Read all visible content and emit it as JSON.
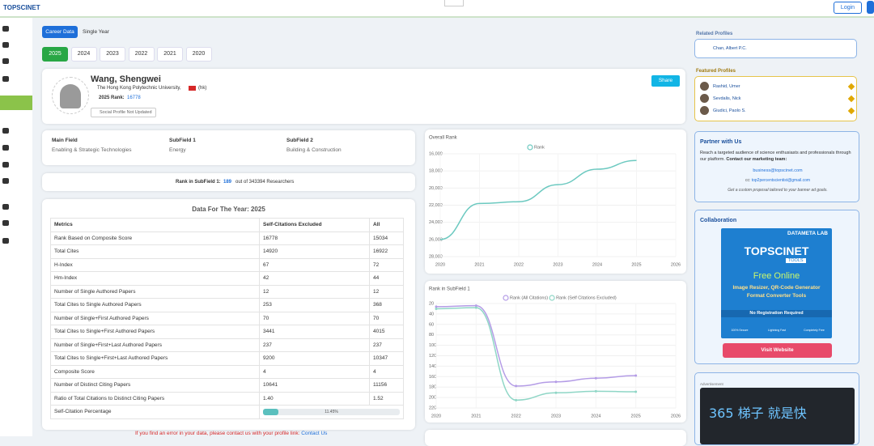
{
  "header": {
    "logo": "TOPSCINET",
    "login": "Login"
  },
  "tabs": [
    "Career Data",
    "Single Year"
  ],
  "years": [
    "2025",
    "2024",
    "2023",
    "2022",
    "2021",
    "2020"
  ],
  "profile": {
    "name": "Wang, Shengwei",
    "institution": "The Hong Kong Polytechnic University,",
    "country": "(hk)",
    "rank_label": "2025 Rank:",
    "rank": "16778",
    "social": "Social Profile Not Updated",
    "share": "Share"
  },
  "fields": [
    {
      "label": "Main Field",
      "value": "Enabling & Strategic Technologies"
    },
    {
      "label": "SubField 1",
      "value": "Energy"
    },
    {
      "label": "SubField 2",
      "value": "Building & Construction"
    }
  ],
  "subfield_rank": {
    "label": "Rank in SubField 1:",
    "rank": "189",
    "text": "out of 343394 Researchers"
  },
  "table": {
    "title": "Data For The Year: 2025",
    "header": [
      "Metrics",
      "Self-Citations Excluded",
      "All"
    ],
    "rows": [
      [
        "Rank Based on Composite Score",
        "16778",
        "15034"
      ],
      [
        "Total Cites",
        "14920",
        "16922"
      ],
      [
        "H-Index",
        "67",
        "72"
      ],
      [
        "Hm-Index",
        "42",
        "44"
      ],
      [
        "Number of Single Authored Papers",
        "12",
        "12"
      ],
      [
        "Total Cites to Single Authored Papers",
        "253",
        "368"
      ],
      [
        "Number of Single+First Authored Papers",
        "70",
        "70"
      ],
      [
        "Total Cites to Single+First Authored Papers",
        "3441",
        "4015"
      ],
      [
        "Number of Single+First+Last Authored Papers",
        "237",
        "237"
      ],
      [
        "Total Cites to Single+First+Last Authored Papers",
        "9200",
        "10347"
      ],
      [
        "Composite Score",
        "4",
        "4"
      ],
      [
        "Number of Distinct Citing Papers",
        "10641",
        "11156"
      ],
      [
        "Ratio of Total Citations to Distinct Citing Papers",
        "1.40",
        "1.52"
      ]
    ],
    "self_citation": {
      "label": "Self-Citation Percentage",
      "value": 11.45,
      "value_label": "11.45%",
      "max": 100
    }
  },
  "footer": {
    "text": "If you find an error in your data, please contact us with your profile link:",
    "link": "Contact Us"
  },
  "sidebar": {
    "related_title": "Related Profiles",
    "related": [
      "Chan, Albert P.C."
    ],
    "featured_title": "Featured Profiles",
    "featured": [
      "Rashid, Umer",
      "Sevdalis, Nick",
      "Giudici, Paolo S."
    ],
    "partner": {
      "title": "Partner with Us",
      "text": "Reach a targeted audience of science enthusiasts and professionals through our platform.",
      "bold": "Contact our marketing team:",
      "email1": "business@topscinet.com",
      "cc": "cc:",
      "email2": "top2percentscientist@gmail.com",
      "note": "Get a custom proposal tailored to your banner ad goals."
    },
    "collab": {
      "title": "Collaboration",
      "brand": "DATAMETA LAB",
      "logo": "TOPSCINET",
      "tools": "TOOLS",
      "headline": "Free Online",
      "line1": "Image Resizer, QR-Code Generator",
      "line2": "Format Converter Tools",
      "noreg": "No Registration Required",
      "features": [
        "100% Secure",
        "Lightning Fast",
        "Completely Free"
      ],
      "button": "Visit Website"
    },
    "ad": {
      "label": "Advertisement",
      "text": "365 梯子 就是快"
    }
  },
  "chart_data": [
    {
      "type": "line",
      "title": "Overall Rank",
      "x": [
        2020,
        2021,
        2022,
        2023,
        2024,
        2025
      ],
      "xlim": [
        2020,
        2026
      ],
      "xticks": [
        2020,
        2021,
        2022,
        2023,
        2024,
        2025,
        2026
      ],
      "ylim": [
        28000,
        16000
      ],
      "yticks": [
        {
          "value": 16000,
          "label": "16,000"
        },
        {
          "value": 18000,
          "label": "18,000"
        },
        {
          "value": 20000,
          "label": "20,000"
        },
        {
          "value": 22000,
          "label": "22,000"
        },
        {
          "value": 24000,
          "label": "24,000"
        },
        {
          "value": 26000,
          "label": "26,000"
        },
        {
          "value": 28000,
          "label": "28,000"
        }
      ],
      "grid": true,
      "legend": "top",
      "series": [
        {
          "name": "Rank",
          "color": "#6cc9c0",
          "values": [
            26000,
            21800,
            21600,
            19600,
            17800,
            16778
          ]
        }
      ]
    },
    {
      "type": "line",
      "title": "Rank in SubField 1",
      "x": [
        2020,
        2021,
        2022,
        2023,
        2024,
        2025
      ],
      "xlim": [
        2020,
        2026
      ],
      "xticks": [
        2020,
        2021,
        2022,
        2023,
        2024,
        2025,
        2026
      ],
      "ylim": [
        220,
        20
      ],
      "yticks": [
        20,
        40,
        60,
        80,
        100,
        120,
        140,
        160,
        180,
        200,
        220
      ],
      "grid": true,
      "legend": "top",
      "series": [
        {
          "name": "Rank (All Citations)",
          "color": "#b49ce6",
          "values": [
            26,
            24,
            178,
            170,
            163,
            158
          ]
        },
        {
          "name": "Rank (Self Citations Excluded)",
          "color": "#8fd6c6",
          "values": [
            30,
            28,
            205,
            191,
            188,
            189
          ]
        }
      ]
    }
  ]
}
